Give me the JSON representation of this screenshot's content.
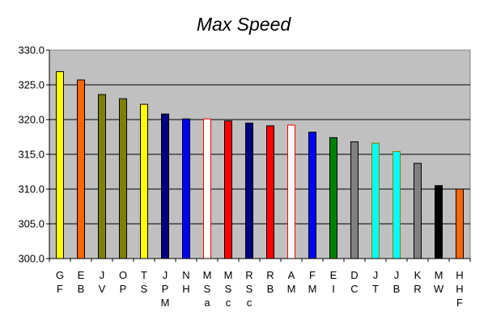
{
  "chart_data": {
    "type": "bar",
    "title": "Max Speed",
    "xlabel": "",
    "ylabel": "",
    "ylim": [
      300,
      330
    ],
    "ytick_step": 5,
    "ytick_labels": [
      "300.0",
      "305.0",
      "310.0",
      "315.0",
      "320.0",
      "325.0",
      "330.0"
    ],
    "grid": true,
    "legend": "none",
    "plot_background": "#c0c0c0",
    "categories": [
      [
        "G",
        "F"
      ],
      [
        "E",
        "B"
      ],
      [
        "J",
        "V"
      ],
      [
        "O",
        "P"
      ],
      [
        "T",
        "S"
      ],
      [
        "J",
        "P",
        "M"
      ],
      [
        "N",
        "H"
      ],
      [
        "M",
        "S",
        "a"
      ],
      [
        "M",
        "S",
        "c"
      ],
      [
        "R",
        "S",
        "c"
      ],
      [
        "R",
        "B"
      ],
      [
        "A",
        "M"
      ],
      [
        "F",
        "M"
      ],
      [
        "E",
        "I"
      ],
      [
        "D",
        "C"
      ],
      [
        "J",
        "T"
      ],
      [
        "J",
        "B"
      ],
      [
        "K",
        "R"
      ],
      [
        "M",
        "W"
      ],
      [
        "H",
        "H",
        "F"
      ]
    ],
    "values": [
      326.9,
      325.7,
      323.6,
      323.0,
      322.2,
      320.8,
      320.1,
      320.1,
      319.8,
      319.5,
      319.1,
      319.2,
      318.2,
      317.4,
      316.8,
      316.6,
      315.4,
      313.7,
      310.5,
      310.0
    ],
    "bar_colors": [
      "#ffff00",
      "#ff6600",
      "#808000",
      "#808000",
      "#ffff00",
      "#000080",
      "#0000ff",
      "#ffffff",
      "#ff0000",
      "#000080",
      "#ff0000",
      "#ffffff",
      "#0000ff",
      "#008000",
      "#808080",
      "#00ffff",
      "#00ffff",
      "#808080",
      "#000000",
      "#ff6600"
    ],
    "bar_borders": [
      "#000000",
      "#000000",
      "#000000",
      "#000000",
      "#000000",
      "#000000",
      "#000000",
      "#ff0000",
      "#000000",
      "#000000",
      "#000000",
      "#ff0000",
      "#000000",
      "#000000",
      "#000000",
      "#808000",
      "#808000",
      "#000000",
      "#000000",
      "#000000"
    ]
  }
}
